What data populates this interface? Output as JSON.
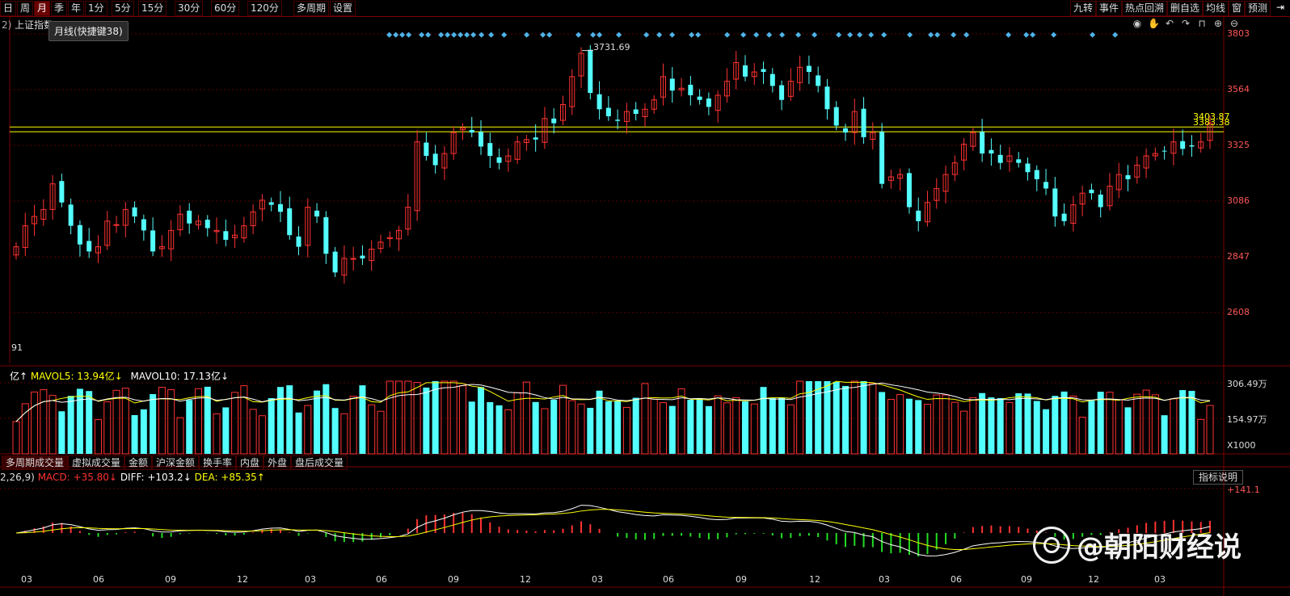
{
  "topbar": {
    "periods": [
      "日",
      "周",
      "月",
      "季",
      "年",
      "1分",
      "5分",
      "15分",
      "30分",
      "60分",
      "120分",
      "多周期",
      "设置"
    ],
    "active_period": "月",
    "right_tools": [
      "九转",
      "事件",
      "热点回溯",
      "删自选",
      "均线",
      "窗",
      "预测"
    ]
  },
  "main_chart": {
    "index_name": "上证指数",
    "tooltip": "月线(快捷键38)",
    "peak_label": "3731.69",
    "hline_labels": [
      "3403.87",
      "3383.38"
    ],
    "left_value": "91",
    "y_ticks": [
      "3803",
      "3564",
      "3325",
      "3086",
      "2847",
      "2608"
    ]
  },
  "volume_panel": {
    "legend_prefix": "亿↑",
    "mavol5": "MAVOL5: 13.94亿↓",
    "mavol10": "MAVOL10: 17.13亿↓",
    "y_ticks": [
      "306.49万",
      "154.97万",
      "X1000"
    ],
    "tabs": [
      "多周期成交量",
      "虚拟成交量",
      "金额",
      "沪深金额",
      "换手率",
      "内盘",
      "外盘",
      "盘后成交量"
    ]
  },
  "macd_panel": {
    "params": "2,26,9)",
    "macd": "MACD: +35.80↓",
    "diff": "DIFF: +103.2↓",
    "dea": "DEA: +85.35↑",
    "help": "指标说明",
    "y_tick": "+141.1"
  },
  "x_axis": [
    "03",
    "06",
    "09",
    "12",
    "03",
    "06",
    "09",
    "12",
    "03",
    "06",
    "09",
    "12",
    "03",
    "06",
    "09",
    "12",
    "03"
  ],
  "watermark": "@朝阳财经说",
  "colors": {
    "up": "#ff3232",
    "down": "#54ffff",
    "hline": "#ffff00",
    "diamond": "#4fb3e8",
    "grid": "#7a0000"
  },
  "chart_data": {
    "type": "candlestick",
    "price_axis": [
      2608,
      2847,
      3086,
      3325,
      3564,
      3803
    ],
    "peak": 3731.69,
    "reference_lines": [
      3403.87,
      3383.38
    ],
    "close": [
      2890,
      2980,
      3020,
      3050,
      3160,
      3080,
      2980,
      2900,
      2870,
      2890,
      3000,
      2985,
      3050,
      3020,
      2960,
      2870,
      2890,
      2960,
      3030,
      2990,
      3000,
      2970,
      2960,
      2920,
      2940,
      2980,
      3040,
      3090,
      3070,
      3040,
      2940,
      2890,
      3060,
      3020,
      2860,
      2780,
      2840,
      2840,
      2840,
      2880,
      2910,
      2930,
      2960,
      3060,
      3340,
      3280,
      3240,
      3290,
      3380,
      3400,
      3380,
      3320,
      3280,
      3250,
      3280,
      3340,
      3350,
      3350,
      3440,
      3420,
      3500,
      3620,
      3720,
      3550,
      3480,
      3450,
      3430,
      3470,
      3460,
      3480,
      3520,
      3620,
      3560,
      3570,
      3540,
      3520,
      3490,
      3540,
      3600,
      3680,
      3620,
      3640,
      3640,
      3580,
      3520,
      3600,
      3660,
      3640,
      3580,
      3480,
      3410,
      3380,
      3470,
      3360,
      3380,
      3160,
      3190,
      3200,
      3060,
      3000,
      3080,
      3140,
      3200,
      3250,
      3330,
      3380,
      3290,
      3290,
      3250,
      3280,
      3250,
      3210,
      3180,
      3140,
      3020,
      3000,
      3070,
      3120,
      3120,
      3060,
      3150,
      3200,
      3180,
      3240,
      3280,
      3290,
      3300,
      3340,
      3310,
      3320,
      3340,
      3420
    ]
  }
}
